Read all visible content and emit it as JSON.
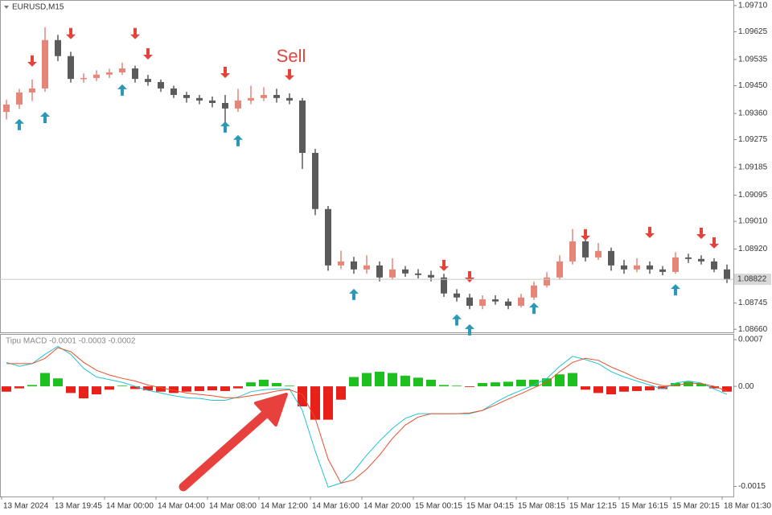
{
  "chart_data": [
    {
      "type": "candlestick",
      "title": "EURUSD,M15",
      "annotation": "Sell",
      "up_color": "#e6867a",
      "down_color": "#5b5b5b",
      "sell_color": "#e0443c",
      "buy_color": "#2a98b6",
      "ylim": [
        1.0865,
        1.09728
      ],
      "yticks": [
        {
          "value": 1.0971,
          "label": "1.09710"
        },
        1.09625,
        1.09535,
        {
          "value": 1.0945,
          "label": "1.09450"
        },
        {
          "value": 1.0936,
          "label": "1.09360"
        },
        1.09275,
        1.09185,
        1.09095,
        {
          "value": 1.0901,
          "label": "1.09010"
        },
        {
          "value": 1.0892,
          "label": "1.08920"
        },
        1.08745,
        {
          "value": 1.0866,
          "label": "1.08660"
        }
      ],
      "open": [
        1.09365,
        1.09389,
        1.09428,
        1.09441,
        1.09598,
        1.09546,
        1.09472,
        1.09475,
        1.09486,
        1.09493,
        1.09506,
        1.09472,
        1.09462,
        1.09441,
        1.0942,
        1.0941,
        1.09402,
        1.09394,
        1.09376,
        1.09402,
        1.0941,
        1.0942,
        1.0941,
        1.09402,
        1.09232,
        1.0905,
        1.08867,
        1.0888,
        1.08854,
        1.08867,
        1.08828,
        1.08854,
        1.08841,
        1.08836,
        1.08828,
        1.08776,
        1.08763,
        1.08736,
        1.08757,
        1.0875,
        1.08736,
        1.08763,
        1.08802,
        1.08828,
        1.0888,
        1.08945,
        1.08893,
        1.08914,
        1.08867,
        1.08854,
        1.08867,
        1.08854,
        1.08846,
        1.08893,
        1.08888,
        1.0888,
        1.08854
      ],
      "high": [
        1.09405,
        1.0944,
        1.0947,
        1.0964,
        1.09615,
        1.0956,
        1.0949,
        1.095,
        1.09505,
        1.09525,
        1.09515,
        1.09485,
        1.0947,
        1.0945,
        1.0943,
        1.0942,
        1.09415,
        1.0942,
        1.0944,
        1.0945,
        1.09445,
        1.0944,
        1.09425,
        1.0941,
        1.09245,
        1.0906,
        1.08915,
        1.08895,
        1.089,
        1.0888,
        1.0889,
        1.08865,
        1.08855,
        1.0885,
        1.0884,
        1.0879,
        1.08775,
        1.0877,
        1.0877,
        1.0876,
        1.08775,
        1.08815,
        1.08845,
        1.089,
        1.08985,
        1.0896,
        1.0894,
        1.08925,
        1.08885,
        1.0889,
        1.0888,
        1.08865,
        1.0891,
        1.08905,
        1.089,
        1.0889,
        1.0887
      ],
      "low": [
        1.0934,
        1.09375,
        1.094,
        1.0943,
        1.0953,
        1.0946,
        1.0946,
        1.09465,
        1.09475,
        1.09485,
        1.0946,
        1.0945,
        1.0943,
        1.0941,
        1.09395,
        1.0939,
        1.0938,
        1.0933,
        1.09365,
        1.0939,
        1.094,
        1.09395,
        1.0939,
        1.0918,
        1.0903,
        1.0885,
        1.08855,
        1.0884,
        1.0884,
        1.08815,
        1.0882,
        1.0883,
        1.08825,
        1.08815,
        1.08765,
        1.0875,
        1.08725,
        1.08725,
        1.0874,
        1.08725,
        1.0873,
        1.08755,
        1.08795,
        1.0882,
        1.0887,
        1.0888,
        1.08885,
        1.0885,
        1.0884,
        1.08845,
        1.0884,
        1.08835,
        1.0884,
        1.08875,
        1.0887,
        1.08845,
        1.0881
      ],
      "close": [
        1.09389,
        1.09428,
        1.09441,
        1.09598,
        1.09546,
        1.09472,
        1.09475,
        1.09486,
        1.09493,
        1.09506,
        1.09472,
        1.09462,
        1.09441,
        1.0942,
        1.0941,
        1.09402,
        1.09394,
        1.09376,
        1.09402,
        1.0941,
        1.0942,
        1.0941,
        1.09402,
        1.09232,
        1.0905,
        1.08867,
        1.0888,
        1.08854,
        1.08867,
        1.08828,
        1.08854,
        1.08841,
        1.08836,
        1.08828,
        1.08776,
        1.08763,
        1.08736,
        1.08757,
        1.0875,
        1.08736,
        1.08763,
        1.08802,
        1.08828,
        1.0888,
        1.08945,
        1.08893,
        1.08914,
        1.08867,
        1.08854,
        1.08867,
        1.08854,
        1.08846,
        1.08893,
        1.08888,
        1.0888,
        1.08854,
        1.08822
      ],
      "sell_signals": [
        null,
        null,
        1.0953,
        null,
        null,
        1.09619,
        null,
        null,
        null,
        null,
        1.09619,
        1.09553,
        null,
        null,
        null,
        null,
        null,
        1.09493,
        null,
        null,
        null,
        null,
        1.09486,
        null,
        null,
        null,
        null,
        null,
        null,
        null,
        null,
        null,
        null,
        null,
        1.08867,
        null,
        1.0883,
        null,
        null,
        null,
        null,
        null,
        null,
        null,
        null,
        1.08966,
        null,
        null,
        null,
        null,
        1.08974,
        null,
        null,
        null,
        1.08971,
        1.0894,
        null
      ],
      "buy_signals": [
        null,
        1.09324,
        null,
        1.09347,
        null,
        null,
        null,
        null,
        null,
        1.09436,
        null,
        null,
        null,
        null,
        null,
        null,
        null,
        1.09316,
        1.09272,
        null,
        null,
        null,
        null,
        null,
        null,
        null,
        null,
        1.08773,
        null,
        null,
        null,
        null,
        null,
        null,
        null,
        1.0869,
        1.08658,
        null,
        null,
        null,
        null,
        1.08728,
        null,
        null,
        null,
        null,
        null,
        null,
        null,
        null,
        null,
        null,
        1.08788,
        null,
        null,
        null,
        null
      ]
    },
    {
      "type": "macd",
      "title": "Tipu MACD -0.0001 -0.0003 -0.0002",
      "ylim": [
        -0.00165,
        0.000785
      ],
      "yticks": [
        0.0007,
        {
          "value": 0,
          "label": "0.00"
        },
        -0.0015
      ],
      "positive_color": "#1fbf1f",
      "negative_color": "#e8201a",
      "macd_color": "#22c4d4",
      "signal_color": "#e8502a",
      "histogram": [
        -8e-05,
        -3e-05,
        2e-05,
        0.0002,
        0.00012,
        -0.0001,
        -0.00018,
        -0.00012,
        -5e-05,
        1e-05,
        -4e-05,
        -6e-05,
        -8e-05,
        -0.0001,
        -8e-05,
        -7e-05,
        -6e-05,
        -7e-05,
        -3e-05,
        6e-05,
        0.0001,
        5e-05,
        1e-05,
        -0.0003,
        -0.0005,
        -0.0005,
        -0.0002,
        0.00014,
        0.0002,
        0.00022,
        0.0002,
        0.00016,
        0.00013,
        0.0001,
        2e-05,
        1e-05,
        -1e-05,
        5e-05,
        6e-05,
        7e-05,
        0.0001,
        0.0001,
        0.00012,
        0.00018,
        0.0002,
        -5e-05,
        -0.0001,
        -0.00012,
        -8e-05,
        -7e-05,
        -6e-05,
        -4e-05,
        5e-05,
        7e-05,
        4e-05,
        -3e-05,
        -8e-05
      ],
      "macd_values": [
        0.00036,
        0.0003,
        0.00034,
        0.00048,
        0.0006,
        0.00048,
        0.00027,
        0.00014,
        0.0001,
        6e-05,
        0,
        -6e-05,
        -0.0001,
        -0.00014,
        -0.00017,
        -0.00018,
        -0.00021,
        -0.00021,
        -0.00016,
        -8e-05,
        -5e-05,
        -4e-05,
        -4e-05,
        -0.00036,
        -0.00097,
        -0.00151,
        -0.00145,
        -0.00127,
        -0.00103,
        -0.00082,
        -0.00063,
        -0.00048,
        -0.00041,
        -0.00041,
        -0.00041,
        -0.00041,
        -0.00041,
        -0.00036,
        -0.00024,
        -0.00014,
        -6e-05,
        2e-05,
        0.00012,
        0.0003,
        0.00045,
        0.0004,
        0.00034,
        0.00022,
        0.00014,
        8e-05,
        2e-05,
        -4e-05,
        5e-05,
        8e-05,
        5e-05,
        -4e-05,
        -0.00012
      ],
      "signal_values": [
        0.00034,
        0.00034,
        0.00034,
        0.00042,
        0.00058,
        0.00052,
        0.00036,
        0.00024,
        0.00017,
        0.00012,
        8e-05,
        2e-05,
        -2e-05,
        -6e-05,
        -0.0001,
        -0.00012,
        -0.00014,
        -0.00017,
        -0.00017,
        -0.00014,
        -0.00011,
        -7e-05,
        -5e-05,
        -0.00012,
        -0.00048,
        -0.00109,
        -0.00145,
        -0.0014,
        -0.00124,
        -0.00103,
        -0.00078,
        -0.00058,
        -0.00046,
        -0.00041,
        -0.00041,
        -0.00041,
        -0.0004,
        -0.00036,
        -0.00028,
        -0.00019,
        -0.00011,
        -2e-05,
        6e-05,
        0.00022,
        0.00036,
        0.00042,
        0.00039,
        0.00029,
        0.00021,
        0.00012,
        6e-05,
        1e-05,
        1e-05,
        5e-05,
        4e-05,
        0,
        -7e-05
      ],
      "xticklabels": [
        "13 Mar 2024",
        "13 Mar 19:45",
        "14 Mar 00:00",
        "14 Mar 04:00",
        "14 Mar 08:00",
        "14 Mar 12:00",
        "14 Mar 16:00",
        "14 Mar 20:00",
        "15 Mar 00:15",
        "15 Mar 04:15",
        "15 Mar 08:15",
        "15 Mar 12:15",
        "15 Mar 16:15",
        "15 Mar 20:15",
        "18 Mar 01:30"
      ]
    }
  ]
}
